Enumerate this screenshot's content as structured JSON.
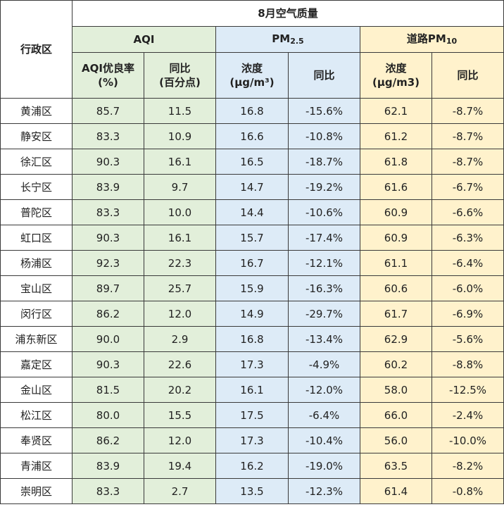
{
  "title": "8月空气质量",
  "row_header": "行政区",
  "groups": {
    "aqi": "AQI",
    "pm25_main": "PM",
    "pm25_sub": "2.5",
    "road_main": "道路PM",
    "road_sub": "10"
  },
  "subheaders": {
    "aqi_rate_line1": "AQI优良率",
    "aqi_rate_line2": "(%)",
    "aqi_yoy_line1": "同比",
    "aqi_yoy_line2": "(百分点)",
    "pm25_conc_line1": "浓度",
    "pm25_conc_line2": "(μg/m³)",
    "pm25_yoy": "同比",
    "road_conc_line1": "浓度",
    "road_conc_line2": "(μg/m3)",
    "road_yoy": "同比"
  },
  "rows": [
    {
      "district": "黄浦区",
      "aqi_rate": "85.7",
      "aqi_yoy": "11.5",
      "pm25": "16.8",
      "pm25_yoy": "-15.6%",
      "road": "62.1",
      "road_yoy": "-8.7%"
    },
    {
      "district": "静安区",
      "aqi_rate": "83.3",
      "aqi_yoy": "10.9",
      "pm25": "16.6",
      "pm25_yoy": "-10.8%",
      "road": "61.2",
      "road_yoy": "-8.7%"
    },
    {
      "district": "徐汇区",
      "aqi_rate": "90.3",
      "aqi_yoy": "16.1",
      "pm25": "16.5",
      "pm25_yoy": "-18.7%",
      "road": "61.8",
      "road_yoy": "-8.7%"
    },
    {
      "district": "长宁区",
      "aqi_rate": "83.9",
      "aqi_yoy": "9.7",
      "pm25": "14.7",
      "pm25_yoy": "-19.2%",
      "road": "61.6",
      "road_yoy": "-6.7%"
    },
    {
      "district": "普陀区",
      "aqi_rate": "83.3",
      "aqi_yoy": "10.0",
      "pm25": "14.4",
      "pm25_yoy": "-10.6%",
      "road": "60.9",
      "road_yoy": "-6.6%"
    },
    {
      "district": "虹口区",
      "aqi_rate": "90.3",
      "aqi_yoy": "16.1",
      "pm25": "15.7",
      "pm25_yoy": "-17.4%",
      "road": "60.9",
      "road_yoy": "-6.3%"
    },
    {
      "district": "杨浦区",
      "aqi_rate": "92.3",
      "aqi_yoy": "22.3",
      "pm25": "16.7",
      "pm25_yoy": "-12.1%",
      "road": "61.1",
      "road_yoy": "-6.4%"
    },
    {
      "district": "宝山区",
      "aqi_rate": "89.7",
      "aqi_yoy": "25.7",
      "pm25": "15.9",
      "pm25_yoy": "-16.3%",
      "road": "60.6",
      "road_yoy": "-6.0%"
    },
    {
      "district": "闵行区",
      "aqi_rate": "86.2",
      "aqi_yoy": "12.0",
      "pm25": "14.9",
      "pm25_yoy": "-29.7%",
      "road": "61.7",
      "road_yoy": "-6.9%"
    },
    {
      "district": "浦东新区",
      "aqi_rate": "90.0",
      "aqi_yoy": "2.9",
      "pm25": "16.8",
      "pm25_yoy": "-13.4%",
      "road": "62.9",
      "road_yoy": "-5.6%"
    },
    {
      "district": "嘉定区",
      "aqi_rate": "90.3",
      "aqi_yoy": "22.6",
      "pm25": "17.3",
      "pm25_yoy": "-4.9%",
      "road": "60.2",
      "road_yoy": "-8.8%"
    },
    {
      "district": "金山区",
      "aqi_rate": "81.5",
      "aqi_yoy": "20.2",
      "pm25": "16.1",
      "pm25_yoy": "-12.0%",
      "road": "58.0",
      "road_yoy": "-12.5%"
    },
    {
      "district": "松江区",
      "aqi_rate": "80.0",
      "aqi_yoy": "15.5",
      "pm25": "17.5",
      "pm25_yoy": "-6.4%",
      "road": "66.0",
      "road_yoy": "-2.4%"
    },
    {
      "district": "奉贤区",
      "aqi_rate": "86.2",
      "aqi_yoy": "12.0",
      "pm25": "17.3",
      "pm25_yoy": "-10.4%",
      "road": "56.0",
      "road_yoy": "-10.0%"
    },
    {
      "district": "青浦区",
      "aqi_rate": "83.9",
      "aqi_yoy": "19.4",
      "pm25": "16.2",
      "pm25_yoy": "-19.0%",
      "road": "63.5",
      "road_yoy": "-8.2%"
    },
    {
      "district": "崇明区",
      "aqi_rate": "83.3",
      "aqi_yoy": "2.7",
      "pm25": "13.5",
      "pm25_yoy": "-12.3%",
      "road": "61.4",
      "road_yoy": "-0.8%"
    }
  ],
  "colors": {
    "aqi_fill": "#e2efda",
    "pm25_fill": "#ddebf7",
    "road_fill": "#fff2cc",
    "border": "#3a3a3a"
  }
}
